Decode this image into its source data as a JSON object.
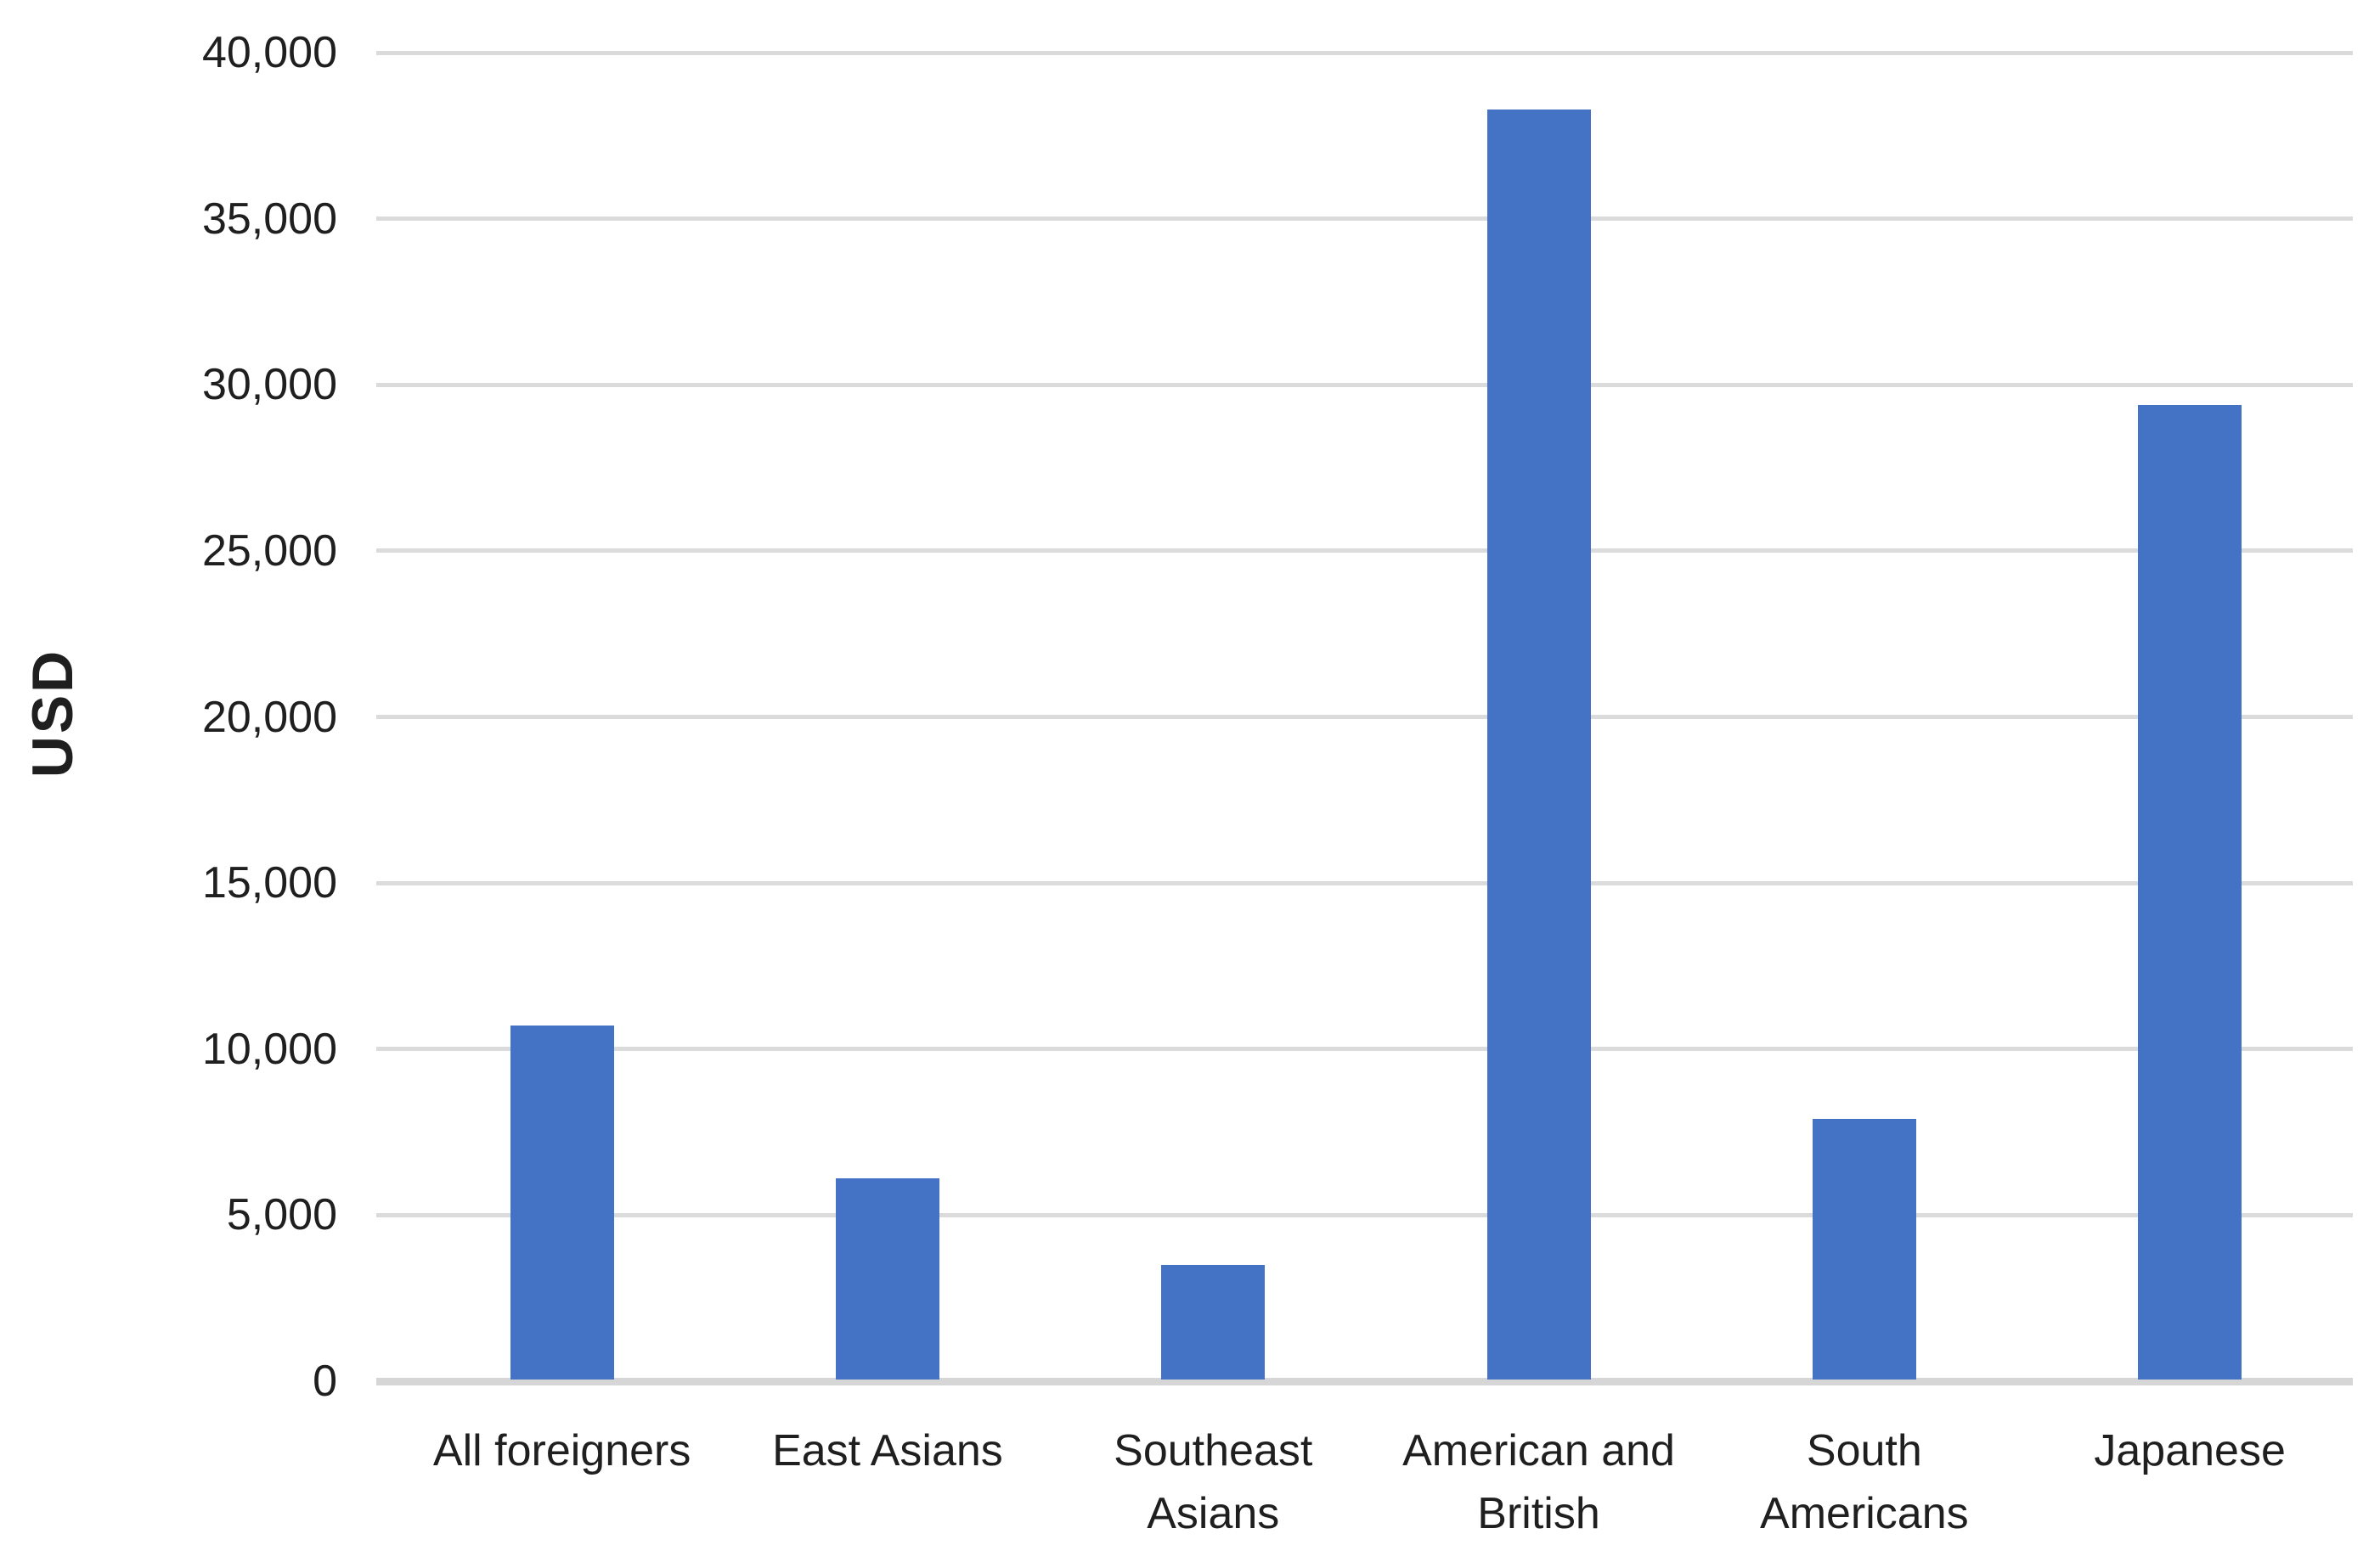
{
  "chart_data": {
    "type": "bar",
    "categories": [
      "All foreigners",
      "East Asians",
      "Southeast Asians",
      "American and British",
      "South Americans",
      "Japanese"
    ],
    "values": [
      10700,
      6100,
      3500,
      38300,
      7900,
      29400
    ],
    "title": "",
    "xlabel": "",
    "ylabel": "USD",
    "ylim": [
      0,
      40000
    ],
    "ytick_step": 5000,
    "ytick_labels": [
      "0",
      "5,000",
      "10,000",
      "15,000",
      "20,000",
      "25,000",
      "30,000",
      "35,000",
      "40,000"
    ],
    "grid": true,
    "legend": false,
    "colors": {
      "bar": "#4472C4",
      "gridline": "#DBDBDB",
      "axis_line": "#D6D6D6",
      "label": "#1F1F1F",
      "background": "#FFFFFF"
    }
  }
}
